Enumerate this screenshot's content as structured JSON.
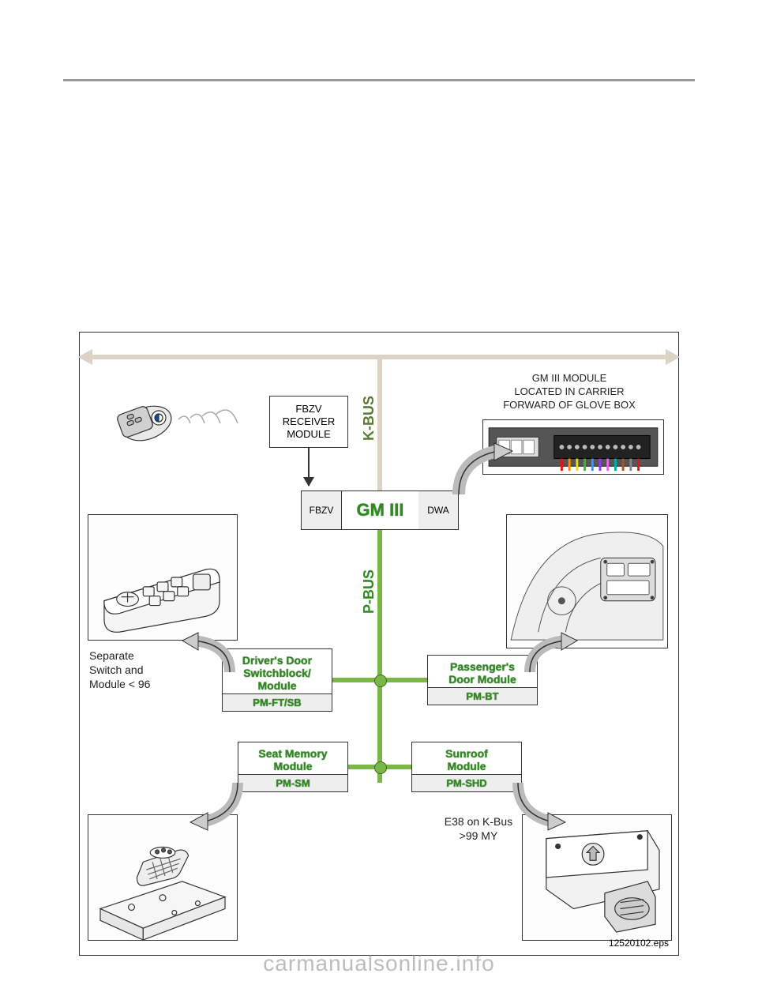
{
  "diagram": {
    "top_arrow_color": "#dcd3c4",
    "pbus_color": "#7ab648",
    "kbus_label": "K-BUS",
    "pbus_label": "P-BUS",
    "kbus_label_color": "#5a7a30",
    "pbus_label_color": "#2e8b1e",
    "fbzv_receiver": "FBZV\nRECEIVER\nMODULE",
    "gm_left": "FBZV",
    "gm_mid": "GM III",
    "gm_right": "DWA",
    "gm_note": "GM III MODULE\nLOCATED IN CARRIER\nFORWARD OF GLOVE BOX",
    "switch_note": "Separate\nSwitch and\nModule < 96",
    "sunroof_note": "E38 on K-Bus\n>99 MY",
    "modules": {
      "pm_ft": {
        "title": "Driver's Door\nSwitchblock/\nModule",
        "sub": "PM-FT/SB"
      },
      "pm_bt": {
        "title": "Passenger's\nDoor Module",
        "sub": "PM-BT"
      },
      "pm_sm": {
        "title": "Seat Memory\nModule",
        "sub": "PM-SM"
      },
      "pm_shd": {
        "title": "Sunroof\nModule",
        "sub": "PM-SHD"
      }
    },
    "caption": "12520102.eps"
  },
  "watermark": "carmanualsonline.info"
}
